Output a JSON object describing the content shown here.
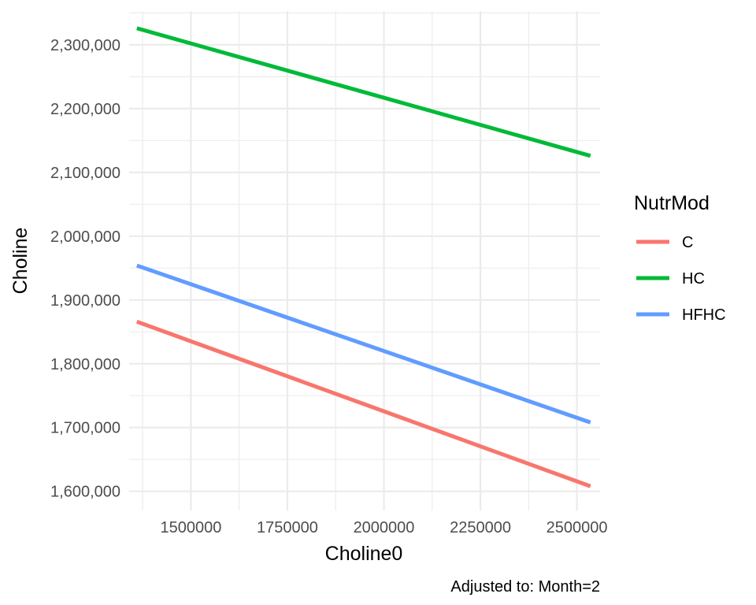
{
  "chart_data": {
    "type": "line",
    "xlabel": "Choline0",
    "ylabel": "Choline",
    "caption": "Adjusted to: Month=2",
    "xlim": [
      1340000,
      2560000
    ],
    "ylim": [
      1570000,
      2353000
    ],
    "x_ticks": [
      1500000,
      1750000,
      2000000,
      2250000,
      2500000
    ],
    "x_tick_labels": [
      "1500000",
      "1750000",
      "2000000",
      "2250000",
      "2500000"
    ],
    "y_ticks": [
      1600000,
      1700000,
      1800000,
      1900000,
      2000000,
      2100000,
      2200000,
      2300000
    ],
    "y_tick_labels": [
      "1,600,000",
      "1,700,000",
      "1,800,000",
      "1,900,000",
      "2,000,000",
      "2,100,000",
      "2,200,000",
      "2,300,000"
    ],
    "grid": true,
    "legend": {
      "title": "NutrMod",
      "position": "right"
    },
    "series": [
      {
        "name": "C",
        "color": "#F8766D",
        "x": [
          1360000,
          2535000
        ],
        "y": [
          1866000,
          1608000
        ]
      },
      {
        "name": "HC",
        "color": "#00BA38",
        "x": [
          1360000,
          2535000
        ],
        "y": [
          2326000,
          2126000
        ]
      },
      {
        "name": "HFHC",
        "color": "#619CFF",
        "x": [
          1360000,
          2535000
        ],
        "y": [
          1954000,
          1708000
        ]
      }
    ]
  }
}
